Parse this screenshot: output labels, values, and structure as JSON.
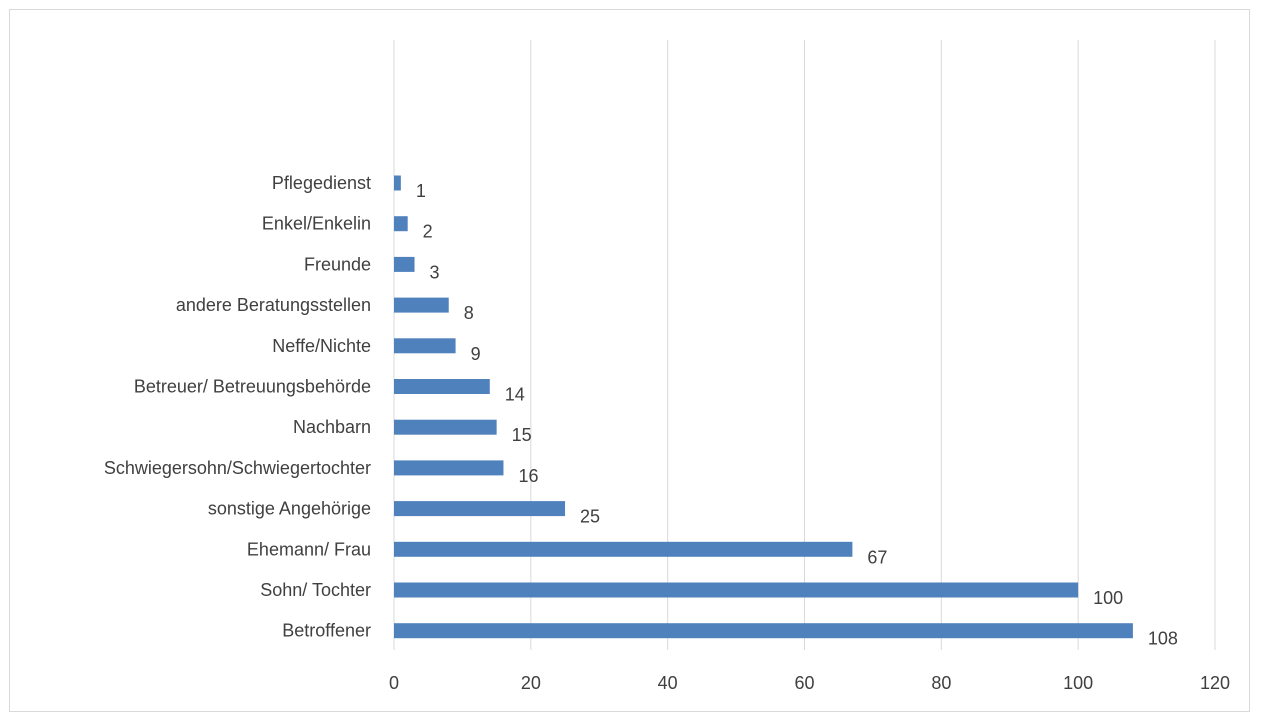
{
  "chart_data": {
    "type": "bar",
    "orientation": "horizontal",
    "title": "",
    "xlabel": "",
    "ylabel": "",
    "categories": [
      "Pflegedienst",
      "Enkel/Enkelin",
      "Freunde",
      "andere Beratungsstellen",
      "Neffe/Nichte",
      "Betreuer/ Betreuungsbehörde",
      "Nachbarn",
      "Schwiegersohn/Schwiegertochter",
      "sonstige Angehörige",
      "Ehemann/ Frau",
      "Sohn/ Tochter",
      "Betroffener"
    ],
    "values": [
      1,
      2,
      3,
      8,
      9,
      14,
      15,
      16,
      25,
      67,
      100,
      108
    ],
    "xlim": [
      0,
      120
    ],
    "xticks": [
      0,
      20,
      40,
      60,
      80,
      100,
      120
    ],
    "grid": "vertical",
    "bar_color": "#4f81bd",
    "grid_color": "#d9d9d9",
    "data_labels": true,
    "legend": "none"
  }
}
